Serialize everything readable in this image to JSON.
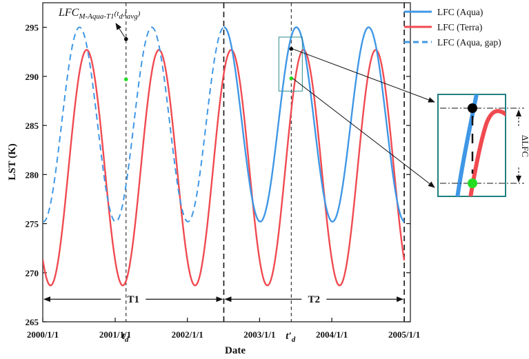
{
  "chart_data": {
    "type": "line",
    "xlabel": "Date",
    "ylabel": "LST (K)",
    "ylim": [
      265,
      297.5
    ],
    "y_ticks": [
      265,
      270,
      275,
      280,
      285,
      290,
      295
    ],
    "x_ticks": [
      {
        "date": "2000-01-01",
        "label": "2000/1/1"
      },
      {
        "date": "2001-01-01",
        "label": "2001/1/1"
      },
      {
        "date": "2002-01-01",
        "label": "2002/1/1"
      },
      {
        "date": "2003-01-01",
        "label": "2003/1/1"
      },
      {
        "date": "2004-01-01",
        "label": "2004/1/1"
      },
      {
        "date": "2005-01-01",
        "label": "2005/1/1"
      }
    ],
    "xlim": [
      "2000-01-01",
      "2005-02-01"
    ],
    "legend_position": "top-right",
    "series": [
      {
        "name": "LFC (Aqua)",
        "color": "#3f97e6",
        "style": "solid",
        "mean": 285.1,
        "amplitude": 9.9,
        "peak_date": "2000-07-05",
        "start": "2002-07-04",
        "end": "2005-01-01"
      },
      {
        "name": "LFC (Terra)",
        "color": "#f04a50",
        "style": "solid",
        "mean": 280.7,
        "amplitude": 12.0,
        "peak_date": "2000-08-10",
        "start": "2000-01-01",
        "end": "2005-01-01"
      },
      {
        "name": "LFC (Aqua, gap)",
        "color": "#3f97e6",
        "style": "dashed",
        "mean": 285.1,
        "amplitude": 9.9,
        "peak_date": "2000-07-05",
        "start": "2000-01-01",
        "end": "2002-07-04"
      }
    ],
    "vlines": [
      {
        "date": "2001-02-25",
        "style": "thin-dashed"
      },
      {
        "date": "2002-07-04",
        "style": "bold-dashed"
      },
      {
        "date": "2003-06-10",
        "style": "thin-dashed"
      },
      {
        "date": "2005-01-01",
        "style": "bold-dashed"
      }
    ],
    "markers": [
      {
        "date": "2001-02-25",
        "value": 293.8,
        "color": "#000000"
      },
      {
        "date": "2001-02-25",
        "value": 289.7,
        "color": "#22dd22"
      },
      {
        "date": "2003-06-10",
        "value": 292.8,
        "color": "#000000"
      },
      {
        "date": "2003-06-10",
        "value": 289.8,
        "color": "#22dd22"
      }
    ],
    "periods": [
      {
        "label": "T1",
        "start": "2000-01-01",
        "end": "2002-07-04",
        "y": 267.3
      },
      {
        "label": "T2",
        "start": "2002-07-04",
        "end": "2005-01-01",
        "y": 267.3
      }
    ],
    "annotations": {
      "top_label_main": "LFC",
      "top_label_sub": "M-Aqua-T1",
      "top_label_tail_1": "(t",
      "top_label_tail_sub1": "d",
      "top_label_tail_2": ",t",
      "top_label_tail_sub2": "avg",
      "top_label_tail_3": ")",
      "td_label": "t",
      "td_sub": "d",
      "tprime_label": "t′",
      "tprime_sub": "d",
      "delta_label": "ΔLFC"
    }
  }
}
